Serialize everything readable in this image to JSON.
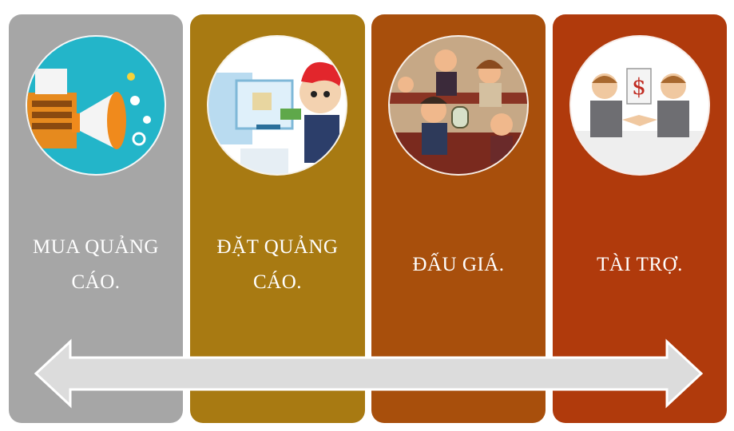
{
  "stages": [
    {
      "label": "MUA QUẢNG CÁO.",
      "icon": "megaphone-marketing-icon",
      "color": "#a6a6a6"
    },
    {
      "label": "ĐẶT QUẢNG CÁO.",
      "icon": "ad-placement-icon",
      "color": "#a87a12"
    },
    {
      "label": "ĐẤU GIÁ.",
      "icon": "auction-crowd-icon",
      "color": "#a84f0c"
    },
    {
      "label": "TÀI TRỢ.",
      "icon": "sponsorship-handshake-icon",
      "color": "#b03a0c"
    }
  ],
  "arrow": {
    "color": "#dcdcdc",
    "direction": "bidirectional"
  }
}
